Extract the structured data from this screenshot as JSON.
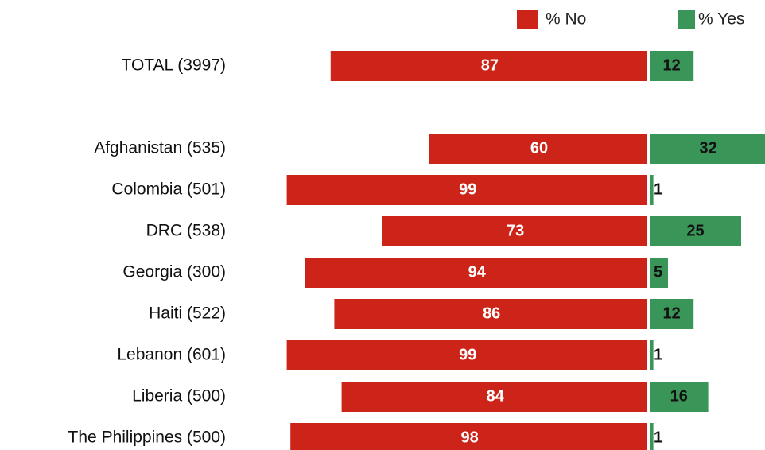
{
  "chart_data": {
    "type": "diverging_bar",
    "categories": [
      "TOTAL (3997)",
      null,
      "Afghanistan (535)",
      "Colombia (501)",
      "DRC (538)",
      "Georgia (300)",
      "Haiti (522)",
      "Lebanon (601)",
      "Liberia (500)",
      "The Philippines (500)"
    ],
    "series": [
      {
        "name": "% No",
        "color": "#cc2418",
        "values": [
          87,
          null,
          60,
          99,
          73,
          94,
          86,
          99,
          84,
          98
        ]
      },
      {
        "name": "% Yes",
        "color": "#3a9658",
        "values": [
          12,
          null,
          32,
          1,
          25,
          5,
          12,
          1,
          16,
          1
        ]
      }
    ],
    "legend": "top-right"
  }
}
